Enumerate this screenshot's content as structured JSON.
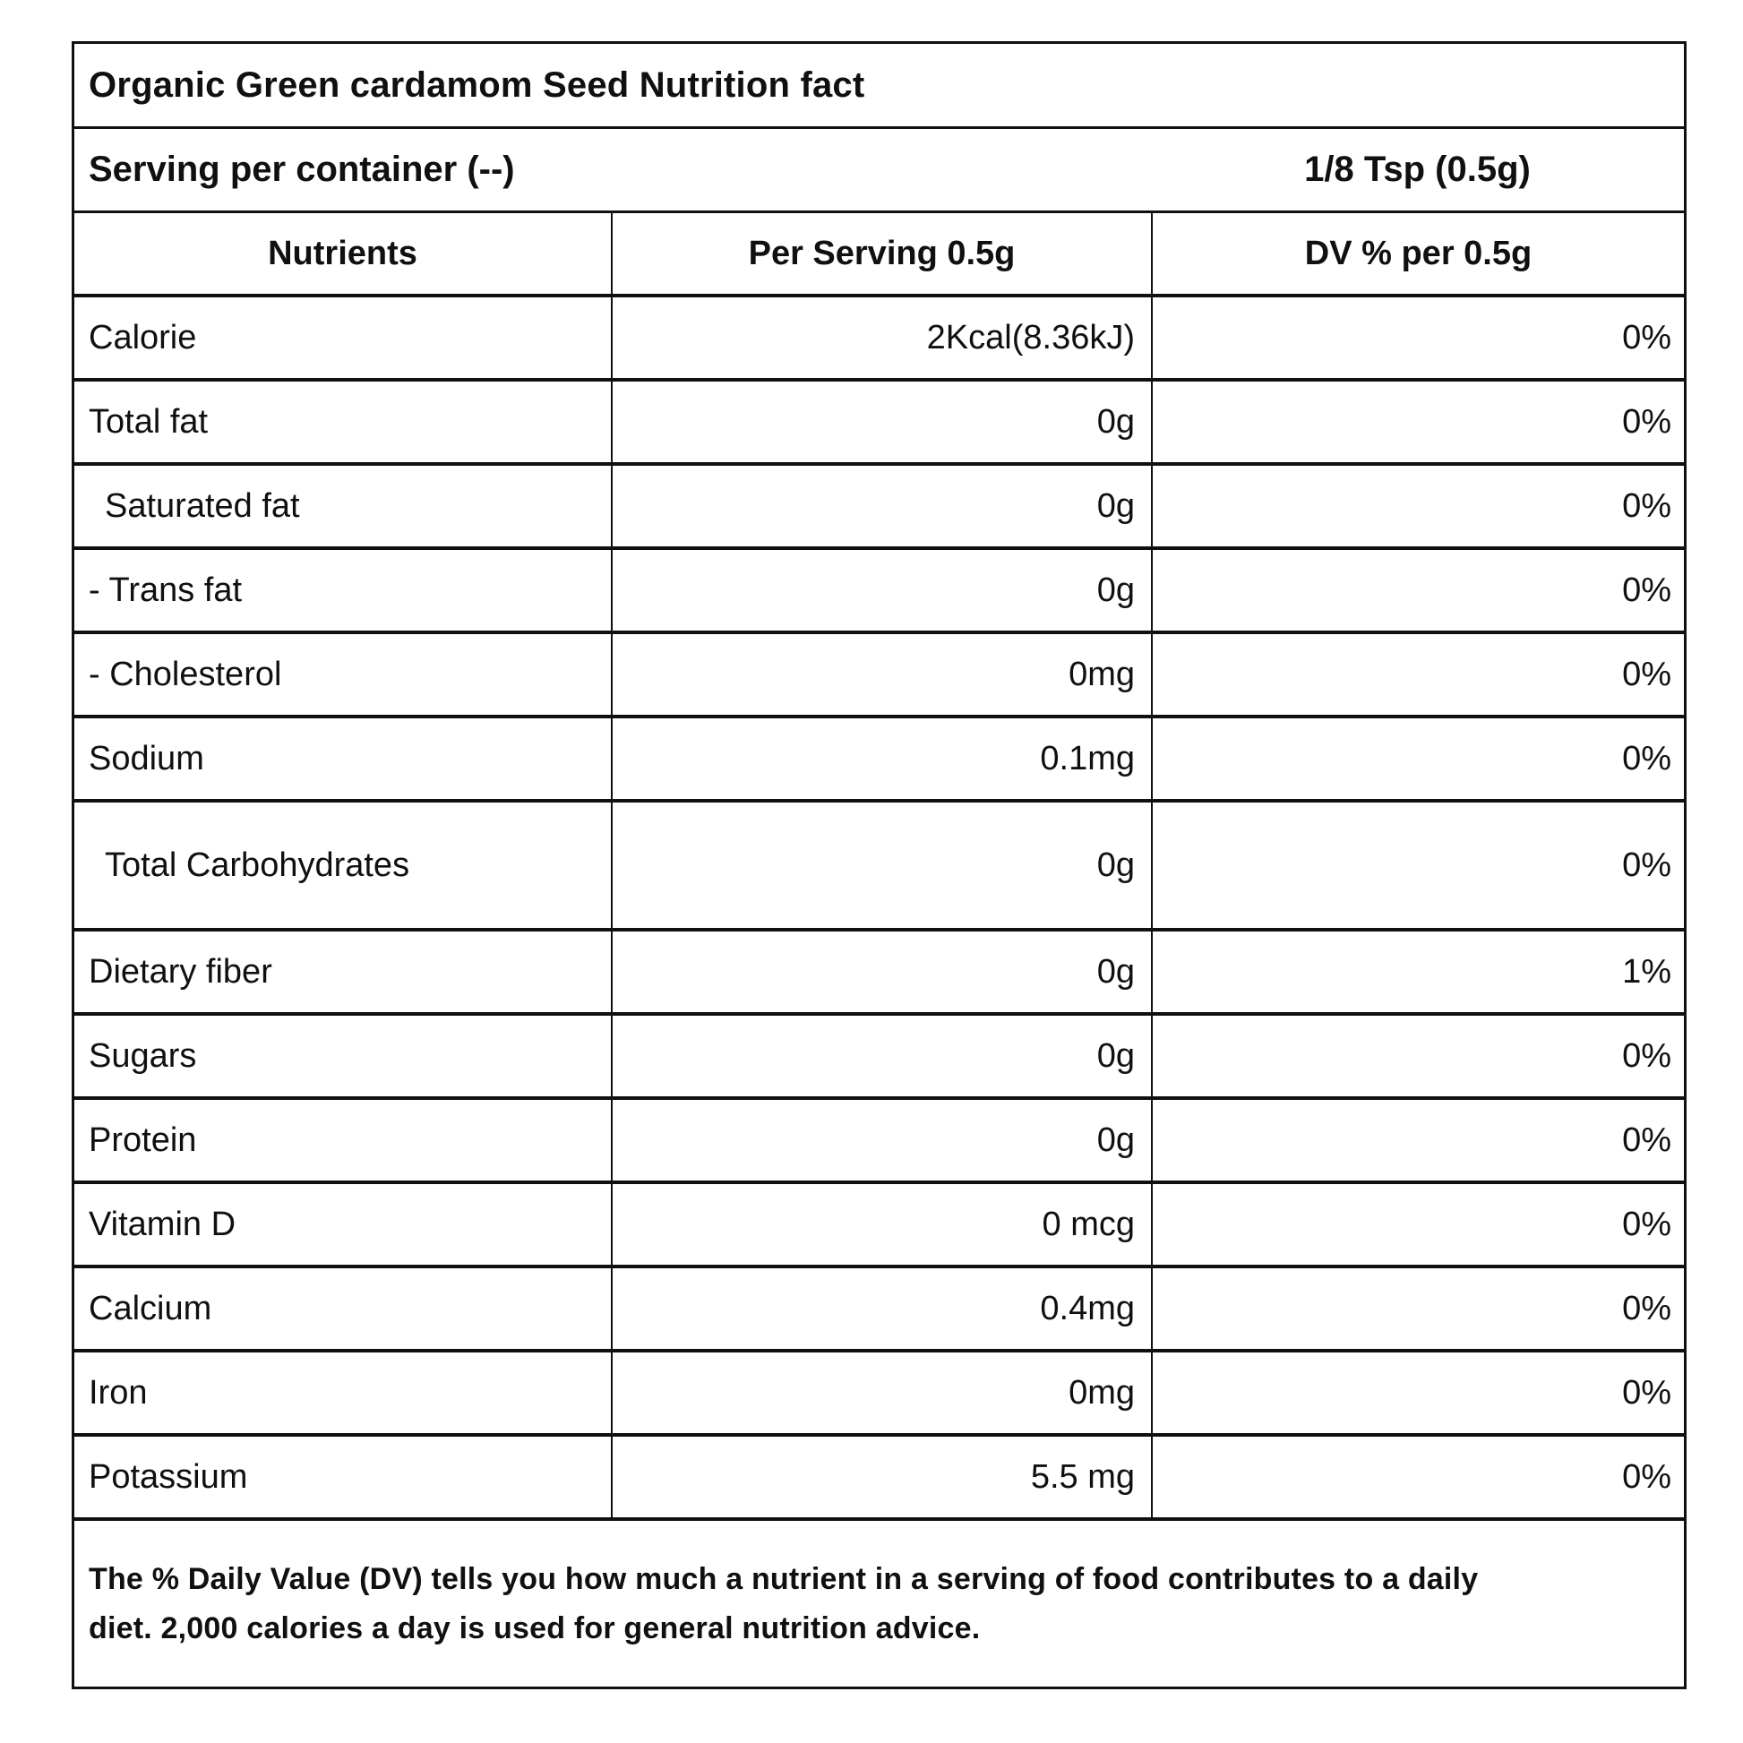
{
  "page": {
    "title": "Organic Green cardamom Seed Nutrition fact",
    "serving": {
      "label": "Serving per container (--)",
      "size": "1/8 Tsp (0.5g)"
    },
    "columns": {
      "nutrients": "Nutrients",
      "per_serving": "Per Serving 0.5g",
      "dv_percent": "DV % per 0.5g"
    },
    "rows": [
      {
        "nutrient": "Calorie",
        "per_serving": "2Kcal(8.36kJ)",
        "dv": "0%"
      },
      {
        "nutrient": "Total fat",
        "per_serving": "0g",
        "dv": "0%"
      },
      {
        "nutrient": "Saturated fat",
        "per_serving": "0g",
        "dv": "0%",
        "indent": true
      },
      {
        "nutrient": "- Trans fat",
        "per_serving": "0g",
        "dv": "0%"
      },
      {
        "nutrient": "- Cholesterol",
        "per_serving": "0mg",
        "dv": "0%"
      },
      {
        "nutrient": "Sodium",
        "per_serving": "0.1mg",
        "dv": "0%"
      },
      {
        "nutrient": "Total Carbohydrates",
        "per_serving": "0g",
        "dv": "0%",
        "indent": true,
        "tall": true
      },
      {
        "nutrient": "Dietary fiber",
        "per_serving": "0g",
        "dv": "1%"
      },
      {
        "nutrient": "Sugars",
        "per_serving": "0g",
        "dv": "0%"
      },
      {
        "nutrient": "Protein",
        "per_serving": "0g",
        "dv": "0%"
      },
      {
        "nutrient": "Vitamin D",
        "per_serving": "0 mcg",
        "dv": "0%"
      },
      {
        "nutrient": "Calcium",
        "per_serving": "0.4mg",
        "dv": "0%"
      },
      {
        "nutrient": "Iron",
        "per_serving": "0mg",
        "dv": "0%"
      },
      {
        "nutrient": "Potassium",
        "per_serving": "5.5 mg",
        "dv": "0%"
      }
    ],
    "footnote_lines": [
      "The % Daily Value (DV) tells you how much a nutrient in a serving of food contributes to a daily",
      "diet. 2,000 calories a day is used for general nutrition advice."
    ],
    "colors": {
      "text": "#101010",
      "border": "#101010",
      "background": "#ffffff"
    }
  }
}
